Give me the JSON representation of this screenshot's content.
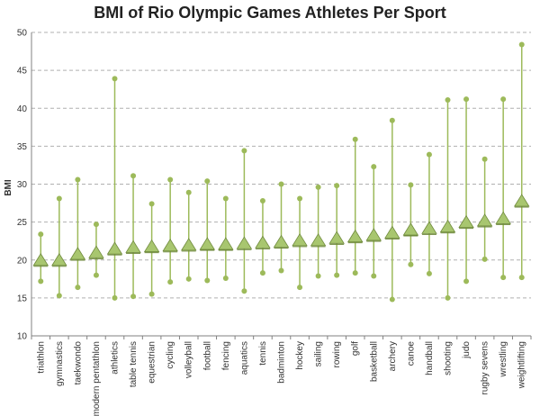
{
  "chart_data": {
    "type": "scatter",
    "title": "BMI of Rio Olympic Games Athletes Per Sport",
    "xlabel": "",
    "ylabel": "BMI",
    "ylim": [
      10,
      50
    ],
    "yticks": [
      10,
      15,
      20,
      25,
      30,
      35,
      40,
      45,
      50
    ],
    "grid": true,
    "colors": {
      "range_line": "#9dba5a",
      "marker": "#a8c66f",
      "marker_edge": "#6f8a3c",
      "grid": "#b0b0b0",
      "axis": "#808080"
    },
    "categories": [
      "triathlon",
      "gymnastics",
      "taekwondo",
      "modern pentathlon",
      "athletics",
      "table tennis",
      "equestrian",
      "cycling",
      "volleyball",
      "football",
      "fencing",
      "aquatics",
      "tennis",
      "badminton",
      "hockey",
      "sailing",
      "rowing",
      "golf",
      "basketball",
      "archery",
      "canoe",
      "handball",
      "shooting",
      "judo",
      "rugby sevens",
      "wrestling",
      "weightlifting"
    ],
    "series": [
      {
        "name": "",
        "role": "min",
        "values": [
          17.2,
          15.3,
          16.4,
          18.0,
          15.0,
          15.2,
          15.5,
          17.1,
          17.5,
          17.3,
          17.6,
          15.9,
          18.3,
          18.6,
          16.4,
          17.9,
          18.0,
          18.3,
          17.9,
          14.8,
          19.4,
          18.2,
          15.0,
          17.2,
          20.1,
          17.7,
          17.7
        ]
      },
      {
        "name": "",
        "role": "mean",
        "values": [
          20.0,
          20.0,
          20.8,
          21.0,
          21.5,
          21.7,
          21.8,
          21.9,
          22.0,
          22.1,
          22.1,
          22.2,
          22.3,
          22.4,
          22.6,
          22.6,
          22.9,
          23.1,
          23.3,
          23.6,
          24.0,
          24.2,
          24.4,
          25.0,
          25.2,
          25.5,
          27.8
        ]
      },
      {
        "name": "",
        "role": "max",
        "values": [
          23.4,
          28.1,
          30.6,
          24.7,
          43.9,
          31.1,
          27.4,
          30.6,
          28.9,
          30.4,
          28.1,
          34.4,
          27.8,
          30.0,
          28.1,
          29.6,
          29.8,
          35.9,
          32.3,
          38.4,
          29.9,
          33.9,
          41.1,
          41.2,
          33.3,
          41.2,
          48.4
        ]
      }
    ]
  }
}
